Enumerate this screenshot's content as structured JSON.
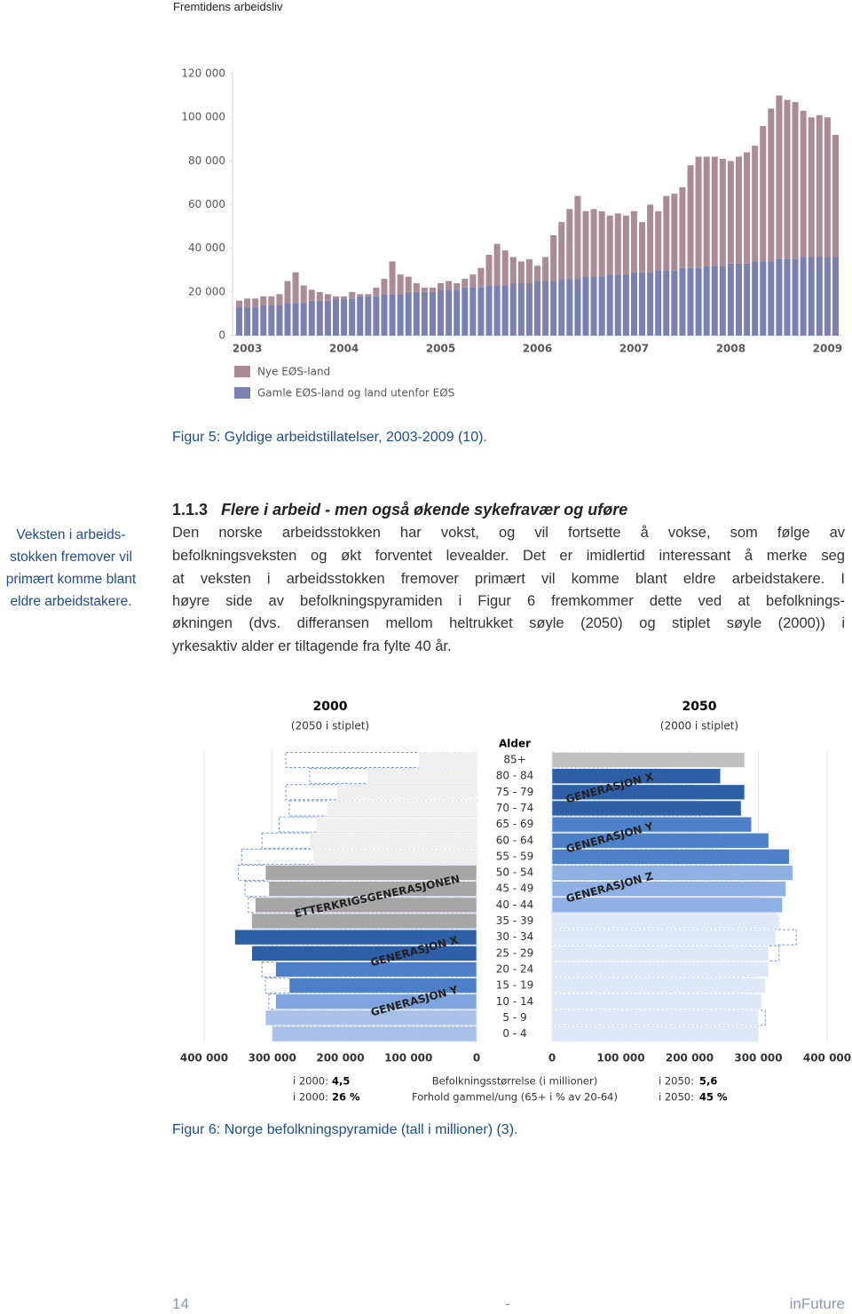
{
  "header": "Fremtidens arbeidsliv",
  "chart_data": [
    {
      "type": "bar",
      "stacked": true,
      "categories": [
        null,
        "2003",
        null,
        null,
        null,
        null,
        null,
        null,
        null,
        null,
        null,
        null,
        null,
        "2004",
        null,
        null,
        null,
        null,
        null,
        null,
        null,
        null,
        null,
        null,
        null,
        "2005",
        null,
        null,
        null,
        null,
        null,
        null,
        null,
        null,
        null,
        null,
        null,
        "2006",
        null,
        null,
        null,
        null,
        null,
        null,
        null,
        null,
        null,
        null,
        null,
        "2007",
        null,
        null,
        null,
        null,
        null,
        null,
        null,
        null,
        null,
        null,
        null,
        "2008",
        null,
        null,
        null,
        null,
        null,
        null,
        null,
        null,
        null,
        null,
        null,
        "2009",
        null
      ],
      "series": [
        {
          "name": "Nye EØS-land",
          "color": "#ab8c94",
          "values": [
            3000,
            4000,
            4000,
            4000,
            4000,
            5000,
            10000,
            14000,
            8000,
            5000,
            4000,
            3000,
            1000,
            1000,
            3000,
            1000,
            1000,
            4000,
            7000,
            15000,
            9000,
            7000,
            4000,
            2000,
            2000,
            3000,
            4000,
            3000,
            4000,
            6000,
            9000,
            14000,
            19000,
            16000,
            12000,
            10000,
            11000,
            7000,
            11000,
            21000,
            26000,
            32000,
            38000,
            30000,
            31000,
            30000,
            27000,
            28000,
            27000,
            28000,
            23000,
            31000,
            27000,
            34000,
            35000,
            37000,
            47000,
            51000,
            50000,
            50000,
            49000,
            47000,
            49000,
            51000,
            53000,
            62000,
            70000,
            75000,
            73000,
            72000,
            67000,
            64000,
            65000,
            64000,
            56000
          ]
        },
        {
          "name": "Gamle EØS-land og land utenfor EØS",
          "color": "#7b80b2",
          "values": [
            13000,
            13000,
            13000,
            14000,
            14000,
            14000,
            15000,
            15000,
            15000,
            16000,
            16000,
            16000,
            17000,
            17000,
            17000,
            18000,
            18000,
            18000,
            19000,
            19000,
            19000,
            20000,
            20000,
            20000,
            20000,
            21000,
            21000,
            21000,
            22000,
            22000,
            22000,
            23000,
            23000,
            23000,
            24000,
            24000,
            24000,
            25000,
            25000,
            25000,
            26000,
            26000,
            26000,
            27000,
            27000,
            27000,
            28000,
            28000,
            28000,
            29000,
            29000,
            29000,
            30000,
            30000,
            30000,
            31000,
            31000,
            31000,
            32000,
            32000,
            32000,
            33000,
            33000,
            33000,
            34000,
            34000,
            34000,
            35000,
            35000,
            35000,
            36000,
            36000,
            36000,
            36000,
            36000
          ]
        }
      ],
      "ylim": [
        0,
        120000
      ],
      "yticks": [
        0,
        {
          "value": 20000,
          "label": "20 000"
        },
        {
          "value": 40000,
          "label": "40 000"
        },
        {
          "value": 60000,
          "label": "60 000"
        },
        {
          "value": 80000,
          "label": "80 000"
        },
        {
          "value": 100000,
          "label": "100 000"
        },
        {
          "value": 120000,
          "label": "120 000"
        }
      ],
      "legend": "bottom-left",
      "caption": "Figur 5: Gyldige arbeidstillatelser, 2003-2009 (10)."
    },
    {
      "type": "pyramid",
      "y_axis_title": "Alder",
      "categories": [
        "85+",
        "80 - 84",
        "75 - 79",
        "70 - 74",
        "65 - 69",
        "60 - 64",
        "55 - 59",
        "50 - 54",
        "45 - 49",
        "40 - 44",
        "35 - 39",
        "30 - 34",
        "25 - 29",
        "20 - 24",
        "15 - 19",
        "10 - 14",
        "5 - 9",
        "0 - 4"
      ],
      "xlim": [
        0,
        400000
      ],
      "xticks": [
        0,
        {
          "value": 100000,
          "label": "100 000"
        },
        {
          "value": 200000,
          "label": "200 000"
        },
        {
          "value": 300000,
          "label": "300 000"
        },
        {
          "value": 400000,
          "label": "400 000"
        }
      ],
      "grid": true,
      "dashed_color": "#7a9ad2",
      "series": [
        {
          "name": "2000",
          "subtitle": "(2050 i stiplet)",
          "values": [
            85000,
            160000,
            205000,
            220000,
            235000,
            245000,
            240000,
            310000,
            305000,
            325000,
            330000,
            355000,
            330000,
            295000,
            275000,
            295000,
            310000,
            300000
          ],
          "colors": [
            "#efefef",
            "#efefef",
            "#efefef",
            "#efefef",
            "#efefef",
            "#efefef",
            "#efefef",
            "#a6a6a6",
            "#a6a6a6",
            "#a6a6a6",
            "#a6a6a6",
            "#2e5fa6",
            "#2e5fa6",
            "#4d80c8",
            "#4d80c8",
            "#7fa3dc",
            "#a9c1e8",
            "#a9c1e8"
          ]
        },
        {
          "name": "2050",
          "subtitle": "(2000 i stiplet)",
          "values": [
            280000,
            245000,
            280000,
            275000,
            290000,
            315000,
            345000,
            350000,
            340000,
            335000,
            330000,
            325000,
            315000,
            315000,
            310000,
            305000,
            300000,
            300000
          ],
          "colors": [
            "#bfbfbf",
            "#2e5fa6",
            "#2e5fa6",
            "#2e5fa6",
            "#4d80c8",
            "#4d80c8",
            "#4d80c8",
            "#8fb0e3",
            "#8fb0e3",
            "#8fb0e3",
            "#dfe8f6",
            "#dfe8f6",
            "#dfe8f6",
            "#dfe8f6",
            "#dfe8f6",
            "#dfe8f6",
            "#dfe8f6",
            "#dfe8f6"
          ]
        }
      ],
      "annotations": {
        "left": [
          "ETTERKRIGSGENERASJONEN",
          "GENERASJON X",
          "GENERASJON Y"
        ],
        "right": [
          "GENERASJON X",
          "GENERASJON Y",
          "GENERASJON Z"
        ]
      },
      "summary": {
        "population": {
          "label": "Befolkningsstørrelse (i millioner)",
          "left": [
            "i 2000:",
            "4,5"
          ],
          "right": [
            "i 2050:",
            "5,6"
          ]
        },
        "ratio": {
          "label": "Forhold gammel/ung (65+ i % av 20-64)",
          "left": [
            "i 2000:",
            "26 %"
          ],
          "right": [
            "i 2050:",
            "45 %"
          ]
        }
      },
      "caption": "Figur 6: Norge befolkningspyramide (tall i millioner) (3)."
    }
  ],
  "sidebar": [
    "Veksten i arbeids-",
    "stokken fremover vil",
    "primært komme blant",
    "eldre arbeidstakere."
  ],
  "section": {
    "number": "1.1.3",
    "title": "Flere i arbeid - men også økende sykefravær og uføre",
    "lines": [
      "Den norske arbeidsstokken har vokst, og vil fortsette å vokse, som følge av",
      "befolkningsveksten og økt forventet levealder. Det er imidlertid interessant å merke seg",
      "at veksten i arbeidsstokken fremover primært vil komme blant eldre arbeidstakere. I",
      "høyre side av befolkningspyramiden i Figur 6 fremkommer dette ved at befolknings-",
      "økningen (dvs. differansen mellom heltrukket søyle (2050) og stiplet søyle (2000)) i",
      "yrkesaktiv alder er tiltagende fra fylte 40 år."
    ]
  },
  "footer": {
    "page": "14",
    "separator": "-",
    "brand": "inFuture"
  }
}
